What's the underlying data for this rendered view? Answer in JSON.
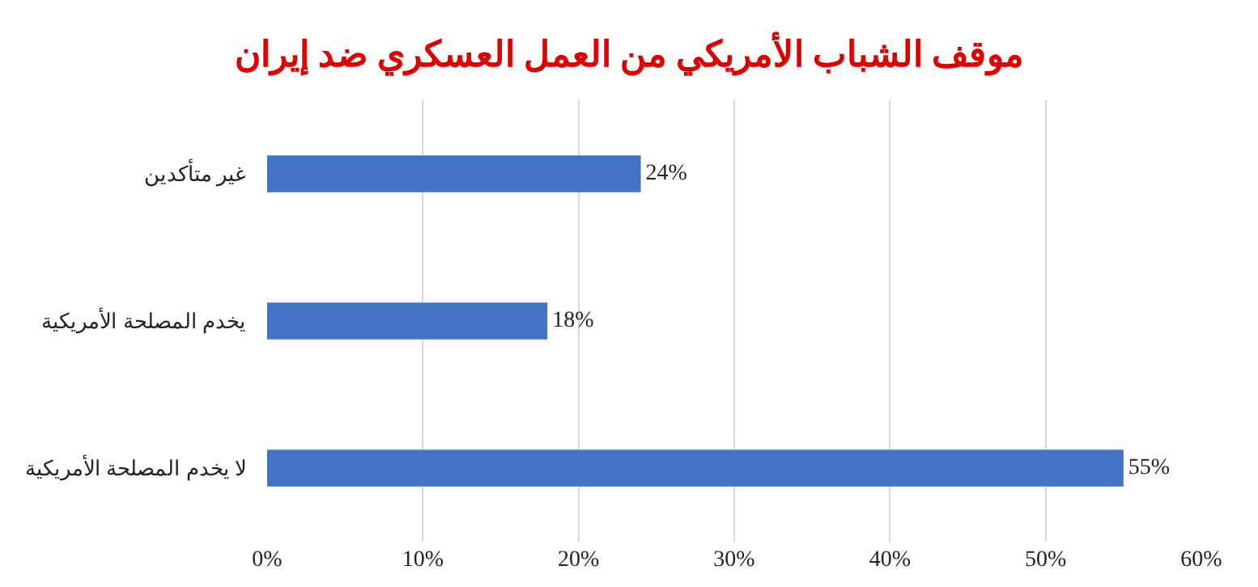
{
  "chart_data": {
    "type": "bar",
    "orientation": "horizontal",
    "title": "موقف الشباب الأمريكي من العمل العسكري ضد إيران",
    "categories": [
      "غير متأكدين",
      "يخدم المصلحة الأمريكية",
      "لا يخدم المصلحة الأمريكية"
    ],
    "values": [
      24,
      18,
      55
    ],
    "value_labels": [
      "24%",
      "18%",
      "55%"
    ],
    "color": "#4472c4",
    "xlim": [
      0,
      60
    ],
    "xticks": [
      {
        "value": 0,
        "label": "0%"
      },
      {
        "value": 10,
        "label": "10%"
      },
      {
        "value": 20,
        "label": "20%"
      },
      {
        "value": 30,
        "label": "30%"
      },
      {
        "value": 40,
        "label": "40%"
      },
      {
        "value": 50,
        "label": "50%"
      },
      {
        "value": 60,
        "label": "60%"
      }
    ],
    "grid": "x",
    "legend": false
  }
}
